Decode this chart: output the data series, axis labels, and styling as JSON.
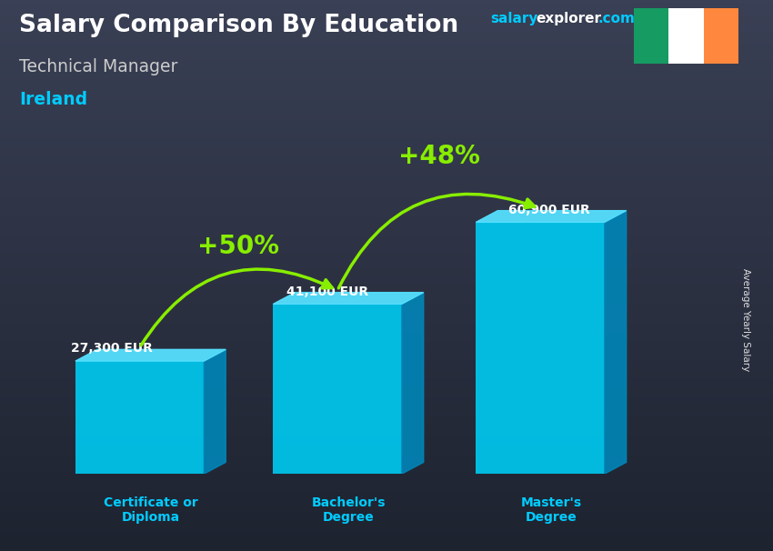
{
  "title": "Salary Comparison By Education",
  "subtitle": "Technical Manager",
  "country": "Ireland",
  "ylabel": "Average Yearly Salary",
  "categories": [
    "Certificate or\nDiploma",
    "Bachelor's\nDegree",
    "Master's\nDegree"
  ],
  "values": [
    27300,
    41100,
    60900
  ],
  "value_labels": [
    "27,300 EUR",
    "41,100 EUR",
    "60,900 EUR"
  ],
  "pct_labels": [
    "+50%",
    "+48%"
  ],
  "bar_color_front": "#00c8ee",
  "bar_color_top": "#55e0ff",
  "bar_color_side": "#0088bb",
  "title_color": "#ffffff",
  "subtitle_color": "#cccccc",
  "country_color": "#00ccff",
  "value_color": "#ffffff",
  "pct_color": "#88ee00",
  "cat_color": "#00ccff",
  "arrow_color": "#88ee00",
  "flag_colors": [
    "#169b62",
    "#ffffff",
    "#ff883e"
  ],
  "bar_positions": [
    1.1,
    3.1,
    5.15
  ],
  "bar_width": 1.3,
  "depth_x": 0.22,
  "depth_y": 0.035,
  "xlim": [
    0.0,
    6.8
  ],
  "ylim": [
    0,
    80000
  ],
  "bg_top": "#3a3f4a",
  "bg_bottom": "#2a2e38"
}
